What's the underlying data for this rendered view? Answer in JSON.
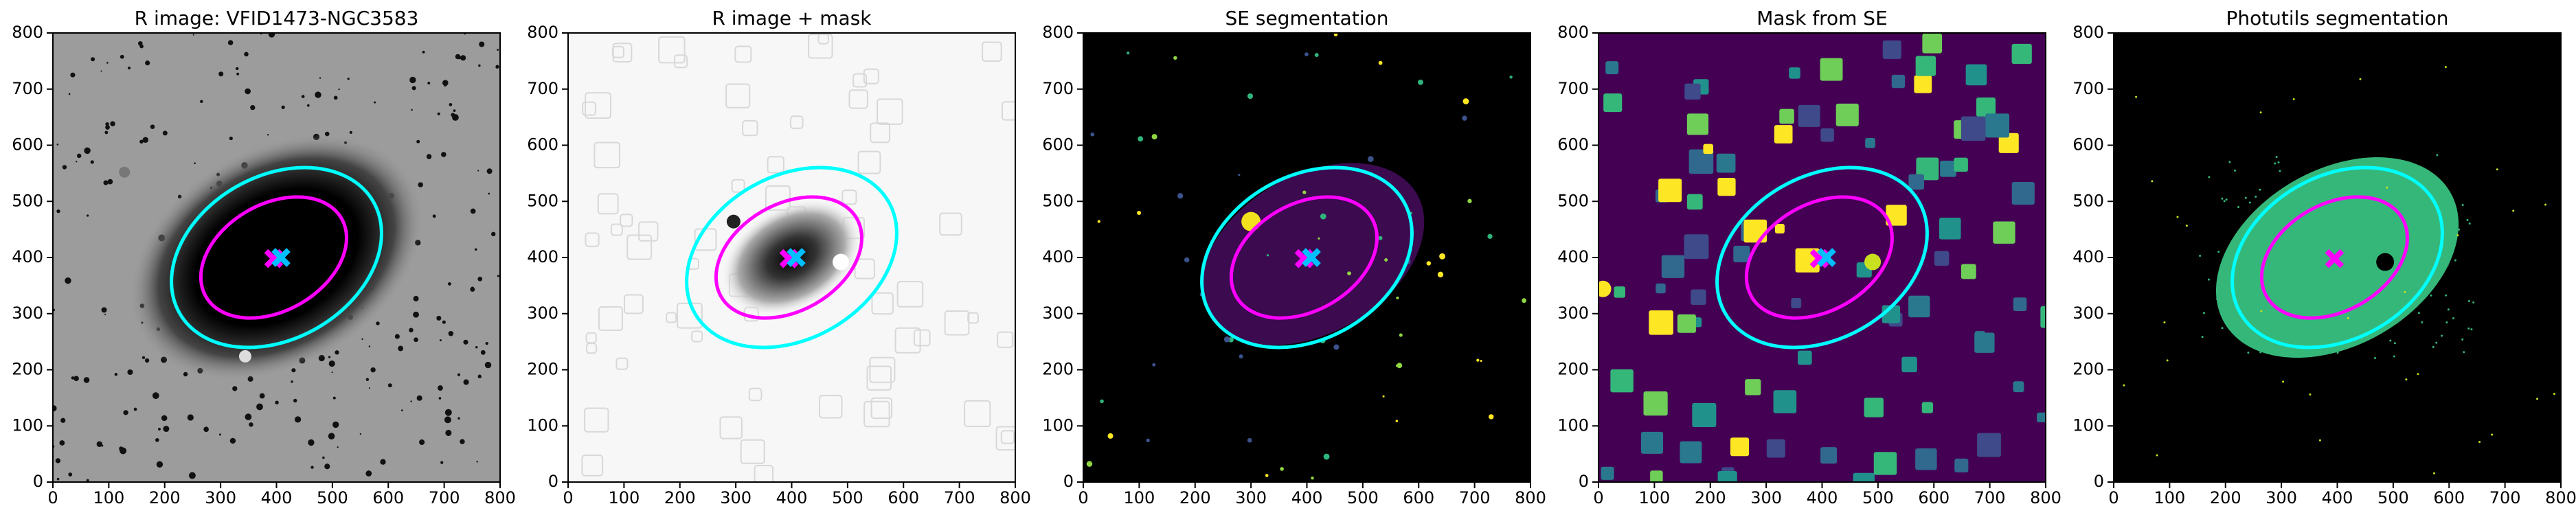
{
  "chart_data": [
    {
      "type": "image",
      "title": "R image: VFID1473-NGC3583",
      "background": "#9c9c9c",
      "xlim": [
        0,
        800
      ],
      "ylim": [
        0,
        800
      ],
      "xticks": [
        0,
        100,
        200,
        300,
        400,
        500,
        600,
        700,
        800
      ],
      "yticks": [
        0,
        100,
        200,
        300,
        400,
        500,
        600,
        700,
        800
      ],
      "ellipses": [
        {
          "center": [
            400,
            400
          ],
          "a": 200,
          "b": 145,
          "angle": 30,
          "color": "#00ffff"
        },
        {
          "center": [
            395,
            400
          ],
          "a": 140,
          "b": 95,
          "angle": 30,
          "color": "#ff00ff"
        }
      ],
      "markers": [
        {
          "x": 395,
          "y": 398,
          "color": "#ff00ff"
        },
        {
          "x": 408,
          "y": 400,
          "color": "#00bfff"
        }
      ]
    },
    {
      "type": "image",
      "title": "R image + mask",
      "background": "#f7f7f7",
      "xlim": [
        0,
        800
      ],
      "ylim": [
        0,
        800
      ],
      "xticks": [
        0,
        100,
        200,
        300,
        400,
        500,
        600,
        700,
        800
      ],
      "yticks": [
        0,
        100,
        200,
        300,
        400,
        500,
        600,
        700,
        800
      ],
      "ellipses": [
        {
          "center": [
            400,
            400
          ],
          "a": 200,
          "b": 145,
          "angle": 30,
          "color": "#00ffff"
        },
        {
          "center": [
            395,
            400
          ],
          "a": 140,
          "b": 95,
          "angle": 30,
          "color": "#ff00ff"
        }
      ],
      "markers": [
        {
          "x": 395,
          "y": 398,
          "color": "#ff00ff"
        },
        {
          "x": 408,
          "y": 400,
          "color": "#00bfff"
        }
      ]
    },
    {
      "type": "image",
      "title": "SE segmentation",
      "background": "#000000",
      "xlim": [
        0,
        800
      ],
      "ylim": [
        0,
        800
      ],
      "xticks": [
        0,
        100,
        200,
        300,
        400,
        500,
        600,
        700,
        800
      ],
      "yticks": [
        0,
        100,
        200,
        300,
        400,
        500,
        600,
        700,
        800
      ],
      "ellipses": [
        {
          "center": [
            400,
            400
          ],
          "a": 200,
          "b": 145,
          "angle": 30,
          "color": "#00ffff"
        },
        {
          "center": [
            395,
            400
          ],
          "a": 140,
          "b": 95,
          "angle": 30,
          "color": "#ff00ff"
        }
      ],
      "markers": [
        {
          "x": 395,
          "y": 398,
          "color": "#ff00ff"
        },
        {
          "x": 408,
          "y": 400,
          "color": "#00bfff"
        }
      ]
    },
    {
      "type": "image",
      "title": "Mask from SE",
      "background": "#440154",
      "xlim": [
        0,
        800
      ],
      "ylim": [
        0,
        800
      ],
      "xticks": [
        0,
        100,
        200,
        300,
        400,
        500,
        600,
        700,
        800
      ],
      "yticks": [
        0,
        100,
        200,
        300,
        400,
        500,
        600,
        700,
        800
      ],
      "ellipses": [
        {
          "center": [
            400,
            400
          ],
          "a": 200,
          "b": 145,
          "angle": 30,
          "color": "#00ffff"
        },
        {
          "center": [
            395,
            400
          ],
          "a": 140,
          "b": 95,
          "angle": 30,
          "color": "#ff00ff"
        }
      ],
      "markers": [
        {
          "x": 395,
          "y": 398,
          "color": "#ff00ff"
        },
        {
          "x": 408,
          "y": 400,
          "color": "#00bfff"
        }
      ]
    },
    {
      "type": "image",
      "title": "Photutils segmentation",
      "background": "#000000",
      "xlim": [
        0,
        800
      ],
      "ylim": [
        0,
        800
      ],
      "xticks": [
        0,
        100,
        200,
        300,
        400,
        500,
        600,
        700,
        800
      ],
      "yticks": [
        0,
        100,
        200,
        300,
        400,
        500,
        600,
        700,
        800
      ],
      "ellipses": [
        {
          "center": [
            400,
            400
          ],
          "a": 200,
          "b": 145,
          "angle": 30,
          "color": "#00ffff"
        },
        {
          "center": [
            395,
            400
          ],
          "a": 140,
          "b": 95,
          "angle": 30,
          "color": "#ff00ff"
        }
      ],
      "markers": [
        {
          "x": 395,
          "y": 398,
          "color": "#ff00ff"
        }
      ]
    }
  ]
}
